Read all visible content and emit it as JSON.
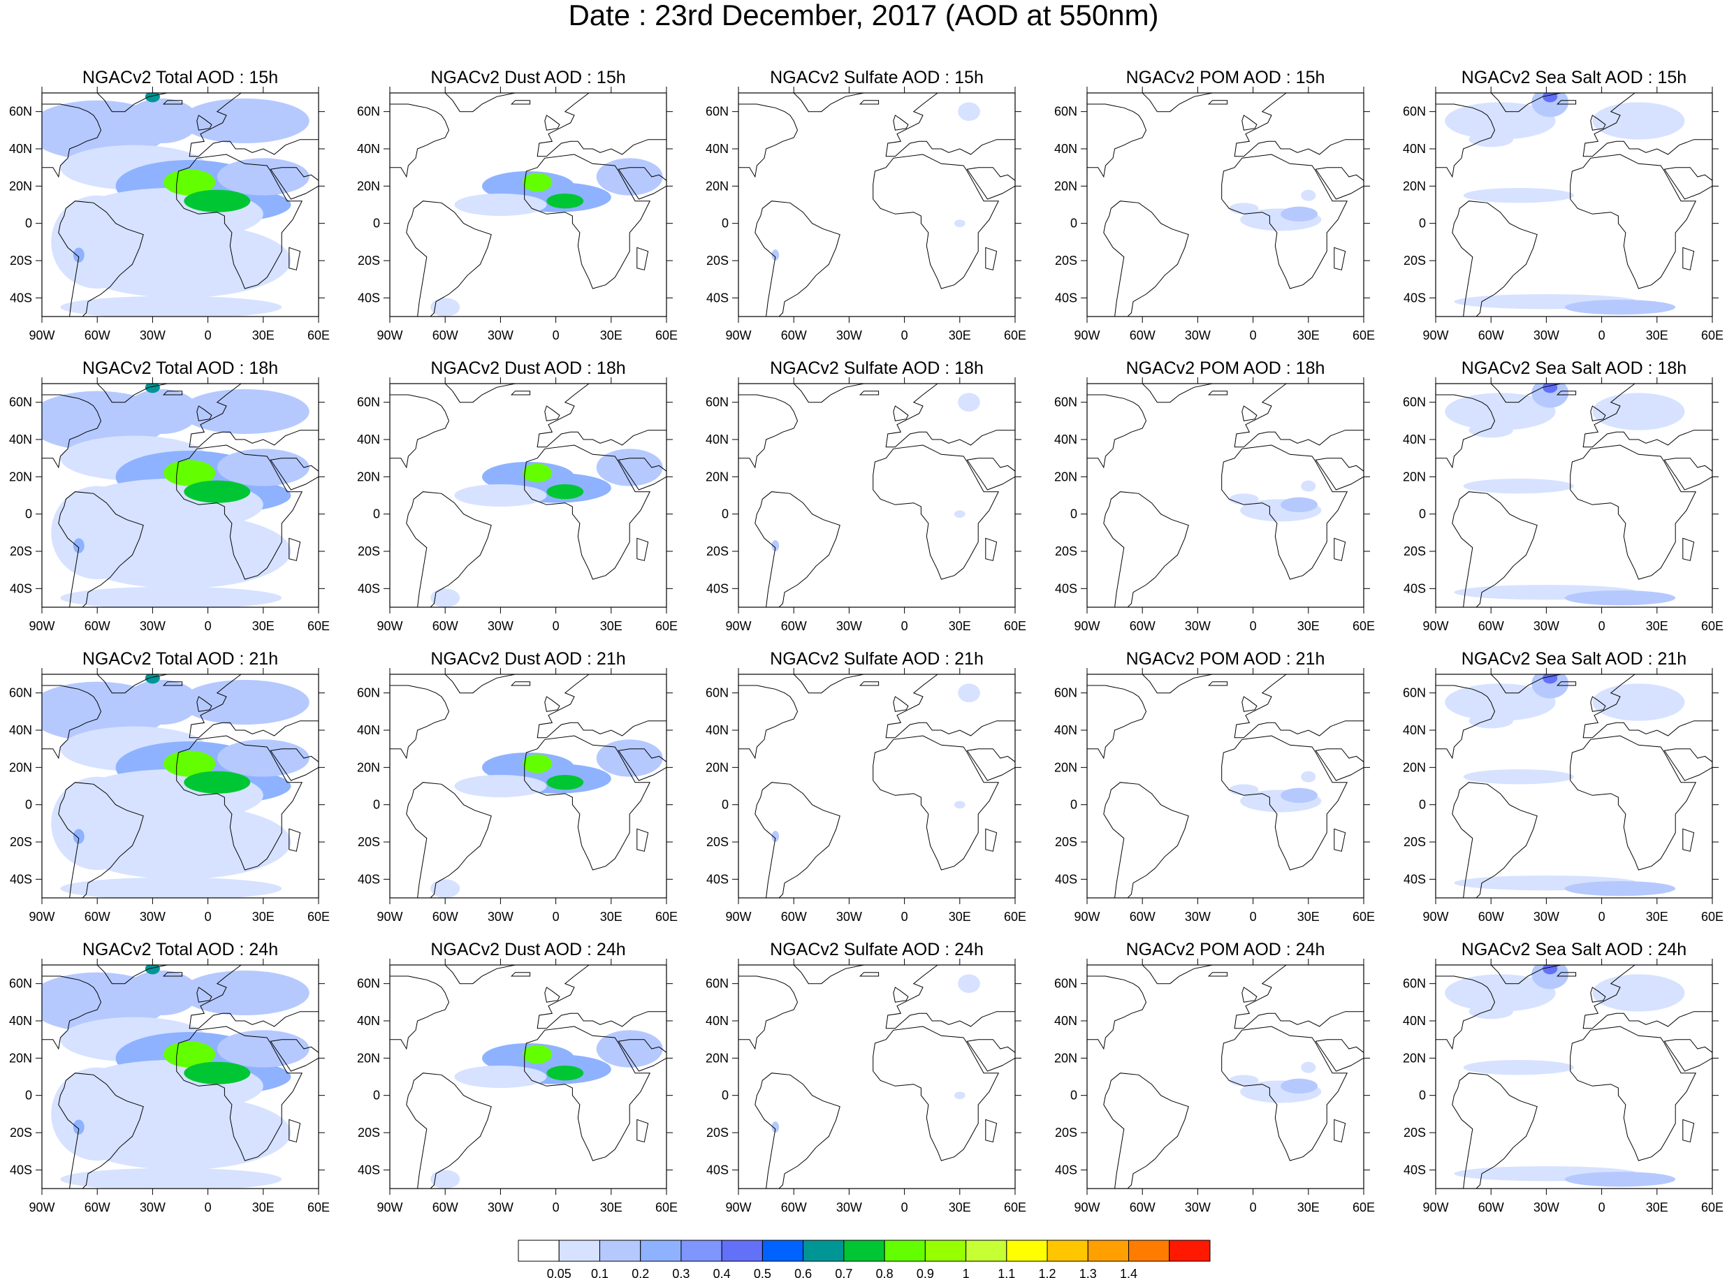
{
  "title": "Date : 23rd December, 2017 (AOD at 550nm)",
  "panels": [
    [
      "NGACv2 Total AOD : 15h",
      "NGACv2 Dust AOD : 15h",
      "NGACv2 Sulfate AOD : 15h",
      "NGACv2 POM AOD : 15h",
      "NGACv2 Sea Salt AOD : 15h"
    ],
    [
      "NGACv2 Total AOD : 18h",
      "NGACv2 Dust AOD : 18h",
      "NGACv2 Sulfate AOD : 18h",
      "NGACv2 POM AOD : 18h",
      "NGACv2 Sea Salt AOD : 18h"
    ],
    [
      "NGACv2 Total AOD : 21h",
      "NGACv2 Dust AOD : 21h",
      "NGACv2 Sulfate AOD : 21h",
      "NGACv2 POM AOD : 21h",
      "NGACv2 Sea Salt AOD : 21h"
    ],
    [
      "NGACv2 Total AOD : 24h",
      "NGACv2 Dust AOD : 24h",
      "NGACv2 Sulfate AOD : 24h",
      "NGACv2 POM AOD : 24h",
      "NGACv2 Sea Salt  AOD : 24h"
    ]
  ],
  "map_extent": {
    "lon": [
      -90,
      60
    ],
    "lat": [
      -50,
      70
    ]
  },
  "lon_ticks": [
    -90,
    -60,
    -30,
    0,
    30,
    60
  ],
  "lon_labels": [
    "90W",
    "60W",
    "30W",
    "0",
    "30E",
    "60E"
  ],
  "lat_ticks": [
    60,
    40,
    20,
    0,
    -20,
    -40
  ],
  "lat_labels": [
    "60N",
    "40N",
    "20N",
    "0",
    "20S",
    "40S"
  ],
  "colorbar": {
    "labels": [
      "0.05",
      "0.1",
      "0.2",
      "0.3",
      "0.4",
      "0.5",
      "0.6",
      "0.7",
      "0.8",
      "0.9",
      "1",
      "1.1",
      "1.2",
      "1.3",
      "1.4"
    ],
    "colors": [
      "#ffffff",
      "#d6e2ff",
      "#b5c9ff",
      "#8eb2ff",
      "#7f96ff",
      "#6370f8",
      "#0063ff",
      "#009696",
      "#00c633",
      "#63ff00",
      "#96ff00",
      "#c6ff33",
      "#ffff00",
      "#ffc600",
      "#ffa000",
      "#ff7c00",
      "#ff1900"
    ]
  }
}
